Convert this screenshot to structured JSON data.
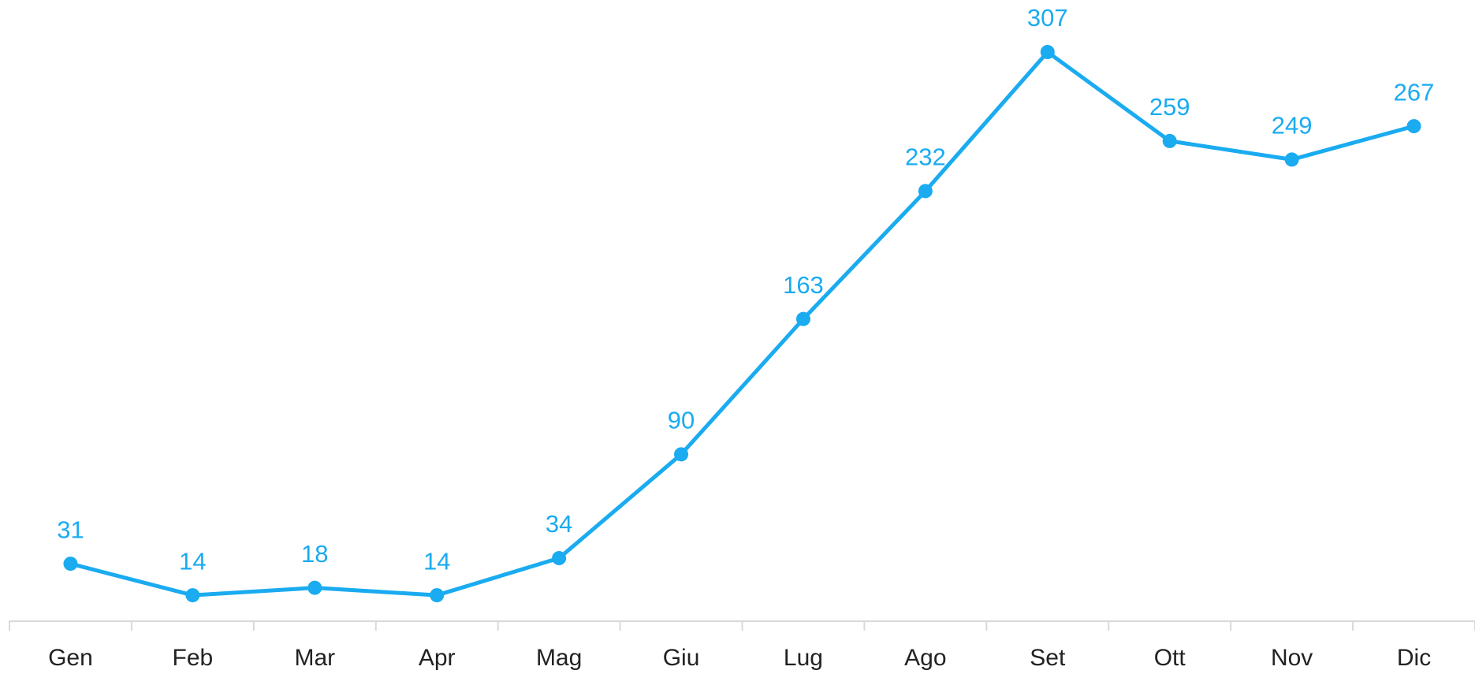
{
  "chart_data": {
    "type": "line",
    "categories": [
      "Gen",
      "Feb",
      "Mar",
      "Apr",
      "Mag",
      "Giu",
      "Lug",
      "Ago",
      "Set",
      "Ott",
      "Nov",
      "Dic"
    ],
    "values": [
      31,
      14,
      18,
      14,
      34,
      90,
      163,
      232,
      307,
      259,
      249,
      267
    ],
    "color": "#1aabf0",
    "grid": false
  }
}
